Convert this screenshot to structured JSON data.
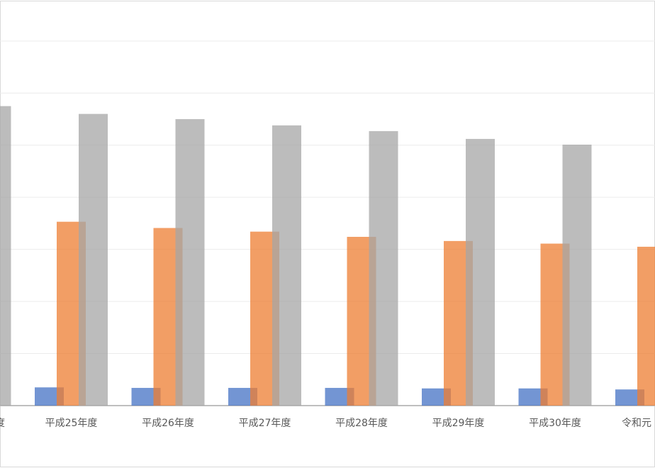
{
  "chart_data": {
    "type": "bar",
    "categories": [
      "度",
      "平成25年度",
      "平成26年度",
      "平成27年度",
      "平成28年度",
      "平成29年度",
      "平成30年度",
      "令和元"
    ],
    "series": [
      {
        "color": "#4472c4",
        "values": [
          null,
          0.35,
          0.34,
          0.34,
          0.34,
          0.33,
          0.33,
          0.31
        ]
      },
      {
        "color": "#ed7d31",
        "values": [
          null,
          3.53,
          3.41,
          3.34,
          3.24,
          3.16,
          3.11,
          3.05
        ]
      },
      {
        "color": "#a5a5a5",
        "values": [
          5.75,
          5.6,
          5.5,
          5.38,
          5.27,
          5.12,
          5.01,
          null
        ]
      }
    ],
    "ylim": [
      0,
      7.76
    ],
    "yticks": [
      0,
      1,
      2,
      3,
      4,
      5,
      6,
      7
    ],
    "grid": true
  }
}
